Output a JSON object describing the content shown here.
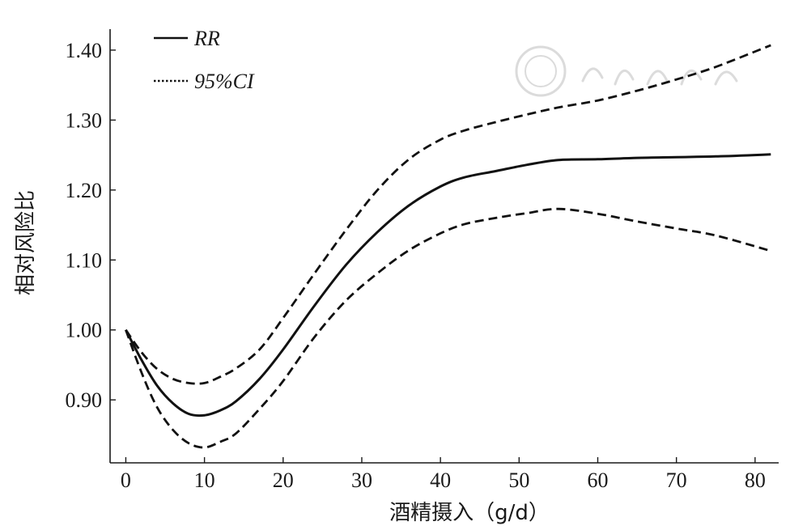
{
  "chart_data": {
    "type": "line",
    "xlabel": "酒精摄入（g/d）",
    "ylabel": "相对风险比",
    "xlim": [
      -2,
      83
    ],
    "ylim": [
      0.81,
      1.43
    ],
    "x_ticks": [
      0,
      10,
      20,
      30,
      40,
      50,
      60,
      70,
      80
    ],
    "x_tick_labels": [
      "0",
      "10",
      "20",
      "30",
      "40",
      "50",
      "60",
      "70",
      "80"
    ],
    "y_ticks": [
      0.9,
      1.0,
      1.1,
      1.2,
      1.3,
      1.4
    ],
    "y_tick_labels": [
      "0.90",
      "1.00",
      "1.10",
      "1.20",
      "1.30",
      "1.40"
    ],
    "grid": false,
    "legend_position": "top-left",
    "legend": [
      {
        "label": "RR",
        "style": "solid"
      },
      {
        "label": "95%CI",
        "style": "dotted"
      }
    ],
    "series": [
      {
        "name": "RR",
        "style": "solid",
        "x": [
          0,
          2,
          4,
          6,
          8,
          10,
          12,
          14,
          17,
          20,
          24,
          28,
          32,
          36,
          40,
          43,
          47,
          51,
          55,
          60,
          65,
          70,
          75,
          82
        ],
        "y": [
          1.0,
          0.957,
          0.92,
          0.895,
          0.88,
          0.878,
          0.885,
          0.898,
          0.93,
          0.972,
          1.035,
          1.093,
          1.14,
          1.178,
          1.205,
          1.218,
          1.227,
          1.236,
          1.243,
          1.244,
          1.246,
          1.247,
          1.248,
          1.251
        ]
      },
      {
        "name": "95%CI",
        "style": "dashed",
        "x": [
          0,
          2,
          4,
          6,
          8,
          10,
          12,
          14,
          17,
          20,
          24,
          28,
          32,
          36,
          40,
          43,
          47,
          51,
          55,
          60,
          65,
          70,
          75,
          82
        ],
        "y": [
          1.0,
          0.968,
          0.944,
          0.93,
          0.924,
          0.924,
          0.933,
          0.945,
          0.972,
          1.017,
          1.081,
          1.143,
          1.2,
          1.244,
          1.272,
          1.285,
          1.297,
          1.308,
          1.318,
          1.328,
          1.342,
          1.358,
          1.376,
          1.407
        ]
      },
      {
        "name": "95%CI",
        "style": "dashed",
        "x": [
          0,
          2,
          4,
          6,
          8,
          10,
          12,
          14,
          17,
          20,
          24,
          28,
          32,
          36,
          40,
          43,
          47,
          51,
          55,
          60,
          65,
          70,
          75,
          82
        ],
        "y": [
          1.0,
          0.939,
          0.889,
          0.857,
          0.838,
          0.832,
          0.84,
          0.852,
          0.887,
          0.927,
          0.99,
          1.042,
          1.081,
          1.114,
          1.138,
          1.151,
          1.16,
          1.167,
          1.173,
          1.166,
          1.155,
          1.145,
          1.135,
          1.113
        ]
      }
    ]
  },
  "colors": {
    "line": "#111111",
    "axis": "#1a1a1a",
    "watermark": "#d8d8d8"
  }
}
